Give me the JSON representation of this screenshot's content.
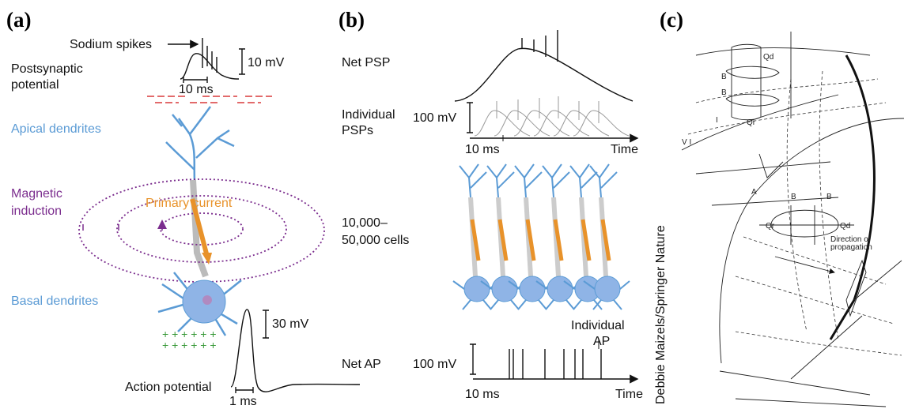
{
  "panel_a": {
    "label": "(a)",
    "sodium_spikes": "Sodium spikes",
    "postsynaptic": [
      "Postsynaptic",
      "potential"
    ],
    "psp_scale": "10 mV",
    "psp_time": "10 ms",
    "apical": "Apical dendrites",
    "magnetic": [
      "Magnetic",
      "induction"
    ],
    "primary": "Primary current",
    "basal": "Basal dendrites",
    "ap_scale": "30 mV",
    "action_potential": "Action potential",
    "ap_time": "1 ms"
  },
  "panel_b": {
    "label": "(b)",
    "net_psp": "Net PSP",
    "individual_psps": [
      "Individual",
      "PSPs"
    ],
    "psp_scale": "100 mV",
    "psp_time": "10 ms",
    "psp_axis": "Time",
    "cells": [
      "10,000–",
      "50,000 cells"
    ],
    "individual_ap": [
      "Individual",
      "AP"
    ],
    "net_ap": "Net AP",
    "ap_scale": "100 mV",
    "ap_time": "10 ms",
    "ap_axis": "Time",
    "credit": "Debbie Maizels/Springer Nature"
  },
  "panel_c": {
    "label": "(c)",
    "b_labels": [
      "B",
      "B",
      "B",
      "B"
    ],
    "qd": [
      "Qd",
      "Qd"
    ],
    "qr": [
      "Qr",
      "Qr"
    ],
    "direction": [
      "Direction of",
      "propagation"
    ],
    "a_label": "A",
    "layer_i": "I",
    "layer_vi": "V I"
  }
}
